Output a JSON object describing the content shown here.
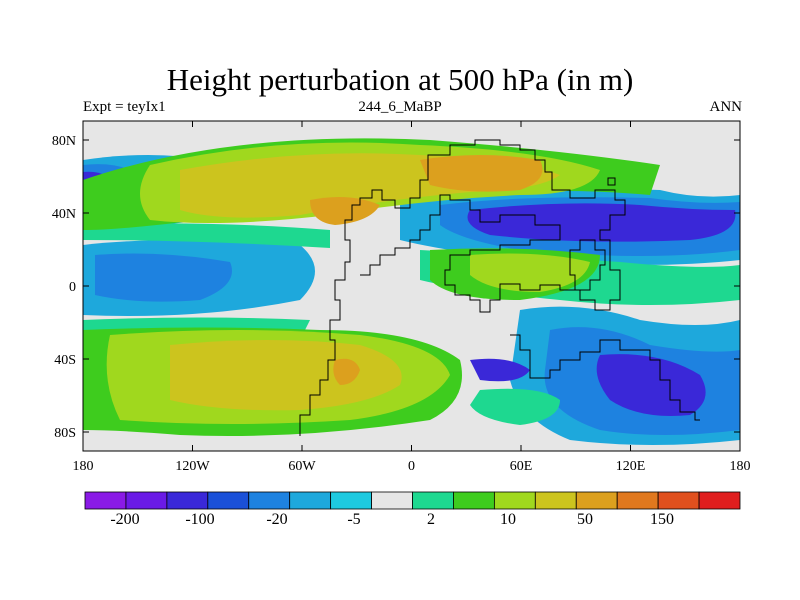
{
  "title": "Height perturbation at 500 hPa (in m)",
  "subtitle": {
    "left": "Expt = teyIx1",
    "center": "244_6_MaBP",
    "right": "ANN"
  },
  "axes": {
    "x_ticks": [
      "180",
      "120W",
      "60W",
      "0",
      "60E",
      "120E",
      "180"
    ],
    "y_ticks": [
      "80N",
      "40N",
      "0",
      "40S",
      "80S"
    ]
  },
  "colorbar": {
    "labels": [
      "-200",
      "-100",
      "-20",
      "-5",
      "2",
      "10",
      "50",
      "150"
    ],
    "colors": [
      "#8a1ae6",
      "#6a1ae6",
      "#3a28d8",
      "#1a50d8",
      "#1e82e0",
      "#1ea8dc",
      "#1ecae0",
      "#e6e6e6",
      "#1ed890",
      "#3ecc1e",
      "#a0d81e",
      "#ccc41e",
      "#dca01e",
      "#e0781e",
      "#e0501e",
      "#e01e1e"
    ]
  },
  "chart_data": {
    "type": "heatmap",
    "title": "Height perturbation at 500 hPa (in m)",
    "variable": "500 hPa height perturbation",
    "units": "m",
    "levels": [
      -200,
      -100,
      -20,
      -5,
      2,
      10,
      50,
      150
    ],
    "xlim": [
      -180,
      180
    ],
    "ylim": [
      -90,
      90
    ],
    "annotations": [
      "Expt = teyIx1",
      "244_6_MaBP",
      "ANN"
    ]
  }
}
